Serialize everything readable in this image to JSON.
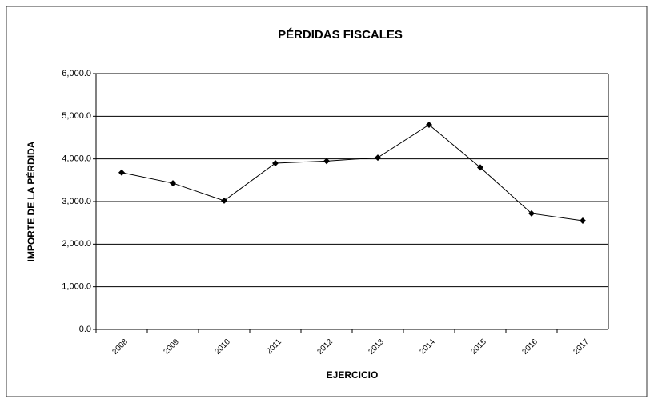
{
  "chart_data": {
    "type": "line",
    "title": "PÉRDIDAS FISCALES",
    "x_label": "EJERCICIO",
    "y_label": "IMPORTE DE LA PÉRDIDA",
    "categories": [
      "2008",
      "2009",
      "2010",
      "2011",
      "2012",
      "2013",
      "2014",
      "2015",
      "2016",
      "2017"
    ],
    "values": [
      3680,
      3430,
      3020,
      3900,
      3950,
      4030,
      4800,
      3800,
      2720,
      2550
    ],
    "color": "#000000",
    "ylim": [
      0,
      6000
    ],
    "yticks": [
      {
        "value": 0,
        "label": "0.0"
      },
      {
        "value": 1000,
        "label": "1,000.0"
      },
      {
        "value": 2000,
        "label": "2,000.0"
      },
      {
        "value": 3000,
        "label": "3,000.0"
      },
      {
        "value": 4000,
        "label": "4,000.0"
      },
      {
        "value": 5000,
        "label": "5,000.0"
      },
      {
        "value": 6000,
        "label": "6,000.0"
      }
    ],
    "grid": true
  }
}
